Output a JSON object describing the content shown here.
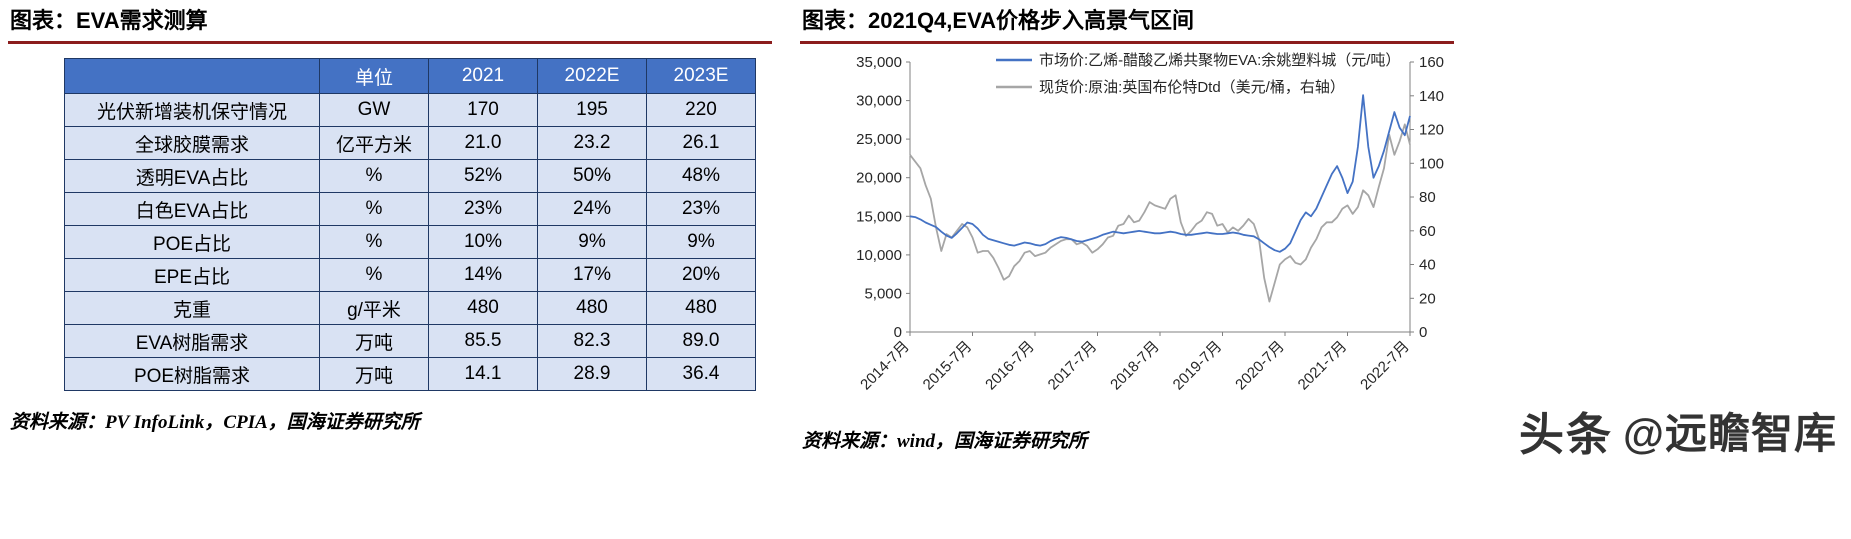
{
  "left_panel": {
    "title": "图表：EVA需求测算",
    "table": {
      "header": [
        "",
        "单位",
        "2021",
        "2022E",
        "2023E"
      ],
      "rows": [
        [
          "光伏新增装机保守情况",
          "GW",
          "170",
          "195",
          "220"
        ],
        [
          "全球胶膜需求",
          "亿平方米",
          "21.0",
          "23.2",
          "26.1"
        ],
        [
          "透明EVA占比",
          "%",
          "52%",
          "50%",
          "48%"
        ],
        [
          "白色EVA占比",
          "%",
          "23%",
          "24%",
          "23%"
        ],
        [
          "POE占比",
          "%",
          "10%",
          "9%",
          "9%"
        ],
        [
          "EPE占比",
          "%",
          "14%",
          "17%",
          "20%"
        ],
        [
          "克重",
          "g/平米",
          "480",
          "480",
          "480"
        ],
        [
          "EVA树脂需求",
          "万吨",
          "85.5",
          "82.3",
          "89.0"
        ],
        [
          "POE树脂需求",
          "万吨",
          "14.1",
          "28.9",
          "36.4"
        ]
      ]
    },
    "source": "资料来源：PV InfoLink，CPIA，国海证券研究所"
  },
  "right_panel": {
    "title": "图表：2021Q4,EVA价格步入高景气区间",
    "source": "资料来源：wind，国海证券研究所"
  },
  "watermark": {
    "brand": "头条",
    "handle": "@远瞻智库"
  },
  "colors": {
    "title_rule": "#8B1D1D",
    "table_header_bg": "#4472C4",
    "table_body_bg": "#D9E2F3",
    "table_border": "#1F3864",
    "eva_line": "#4472C4",
    "brent_line": "#A6A6A6",
    "watermark": "#333333"
  },
  "chart_data": {
    "type": "line",
    "title": "2021Q4,EVA价格步入高景气区间",
    "xlabel": "",
    "ylabel_left": "元/吨",
    "ylabel_right": "美元/桶",
    "grid": false,
    "legend_position": "top",
    "left_axis": {
      "min": 0,
      "max": 35000,
      "step": 5000
    },
    "right_axis": {
      "min": 0,
      "max": 160,
      "step": 20
    },
    "x_tick_labels": [
      "2014-7月",
      "2015-7月",
      "2016-7月",
      "2017-7月",
      "2018-7月",
      "2019-7月",
      "2020-7月",
      "2021-7月",
      "2022-7月"
    ],
    "x_tick_positions": [
      0,
      12,
      24,
      36,
      48,
      60,
      72,
      84,
      96
    ],
    "legend": [
      {
        "label": "市场价:乙烯-醋酸乙烯共聚物EVA:余姚塑料城（元/吨）",
        "color": "#4472C4",
        "axis": "left"
      },
      {
        "label": "现货价:原油:英国布伦特Dtd（美元/桶，右轴）",
        "color": "#A6A6A6",
        "axis": "right"
      }
    ],
    "series": [
      {
        "id": "eva-price-line",
        "name": "市场价:乙烯-醋酸乙烯共聚物EVA:余姚塑料城",
        "axis": "left",
        "color": "#4472C4",
        "unit": "元/吨",
        "x_start": "2014-07",
        "x_interval": "monthly",
        "values": [
          15000,
          14900,
          14600,
          14200,
          13900,
          13600,
          13000,
          12500,
          12200,
          12800,
          13500,
          14200,
          14000,
          13400,
          12600,
          12100,
          11900,
          11700,
          11500,
          11300,
          11200,
          11400,
          11600,
          11500,
          11300,
          11200,
          11400,
          11800,
          12100,
          12300,
          12200,
          12000,
          11800,
          11700,
          11900,
          12100,
          12300,
          12600,
          12800,
          13000,
          12900,
          12800,
          12900,
          13000,
          13100,
          13000,
          12900,
          12800,
          12800,
          12900,
          13000,
          12900,
          12700,
          12600,
          12600,
          12700,
          12800,
          12900,
          12800,
          12700,
          12700,
          12800,
          12900,
          12800,
          12600,
          12500,
          12400,
          12000,
          11500,
          11000,
          10600,
          10400,
          10800,
          11500,
          13000,
          14500,
          15500,
          15000,
          16000,
          17500,
          19000,
          20500,
          21500,
          20000,
          18000,
          19500,
          24000,
          30700,
          24000,
          20000,
          21500,
          23500,
          26000,
          28500,
          26500,
          25500,
          28000
        ]
      },
      {
        "id": "brent-price-line",
        "name": "现货价:原油:英国布伦特Dtd",
        "axis": "right",
        "color": "#A6A6A6",
        "unit": "美元/桶",
        "x_start": "2014-07",
        "x_interval": "monthly",
        "values": [
          105,
          101,
          97,
          87,
          79,
          62,
          48,
          58,
          56,
          60,
          64,
          62,
          56,
          47,
          48,
          48,
          44,
          38,
          31,
          33,
          39,
          42,
          47,
          48,
          45,
          46,
          47,
          50,
          52,
          54,
          55,
          55,
          52,
          53,
          51,
          47,
          49,
          52,
          56,
          57,
          63,
          64,
          69,
          65,
          66,
          71,
          77,
          75,
          74,
          73,
          79,
          81,
          65,
          57,
          60,
          64,
          66,
          71,
          70,
          63,
          64,
          59,
          62,
          60,
          63,
          67,
          64,
          55,
          32,
          18,
          29,
          40,
          43,
          45,
          41,
          40,
          43,
          50,
          55,
          62,
          65,
          65,
          68,
          73,
          75,
          70,
          74,
          84,
          81,
          74,
          86,
          97,
          117,
          105,
          113,
          123,
          111
        ]
      }
    ]
  }
}
